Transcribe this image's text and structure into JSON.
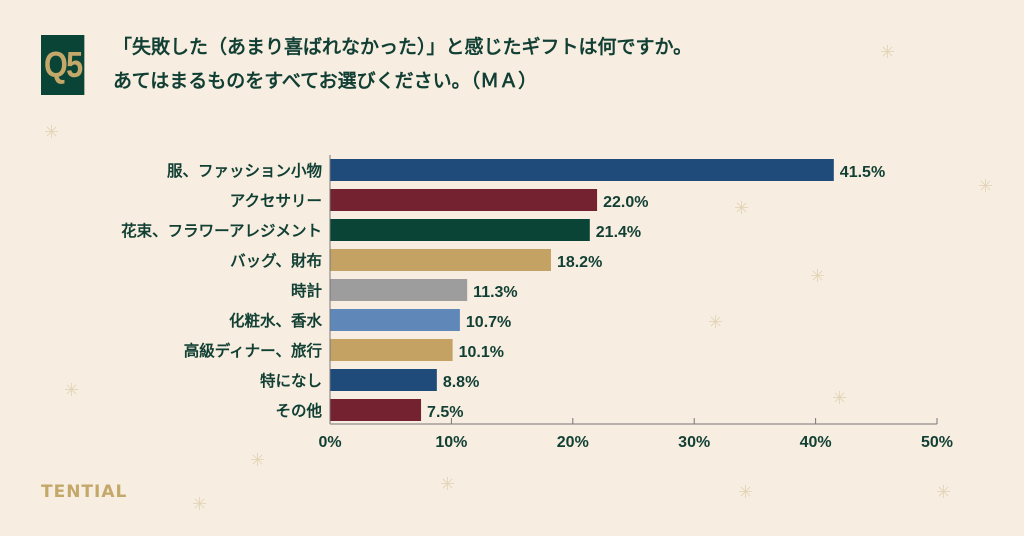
{
  "header": {
    "badge": "Q5",
    "title_line1": "「失敗した（あまり喜ばれなかった）」と感じたギフトは何ですか。",
    "title_line2": "あてはまるものをすべてお選びください。（ＭＡ）"
  },
  "brand": "TENTIAL",
  "chart_data": {
    "type": "bar",
    "orientation": "horizontal",
    "categories": [
      "服、ファッション小物",
      "アクセサリー",
      "花束、フラワーアレジメント",
      "バッグ、財布",
      "時計",
      "化粧水、香水",
      "高級ディナー、旅行",
      "特になし",
      "その他"
    ],
    "values": [
      41.5,
      22.0,
      21.4,
      18.2,
      11.3,
      10.7,
      10.1,
      8.8,
      7.5
    ],
    "data_labels": [
      "41.5%",
      "22.0%",
      "21.4%",
      "18.2%",
      "11.3%",
      "10.7%",
      "10.1%",
      "8.8%",
      "7.5%"
    ],
    "colors": [
      "#1f4b7a",
      "#74222f",
      "#0a4436",
      "#c4a264",
      "#9d9d9d",
      "#5f88b9",
      "#c4a264",
      "#1f4b7a",
      "#74222f"
    ],
    "xlim": [
      0,
      50
    ],
    "xticks": [
      "0%",
      "10%",
      "20%",
      "30%",
      "40%",
      "50%"
    ],
    "grid": false
  }
}
